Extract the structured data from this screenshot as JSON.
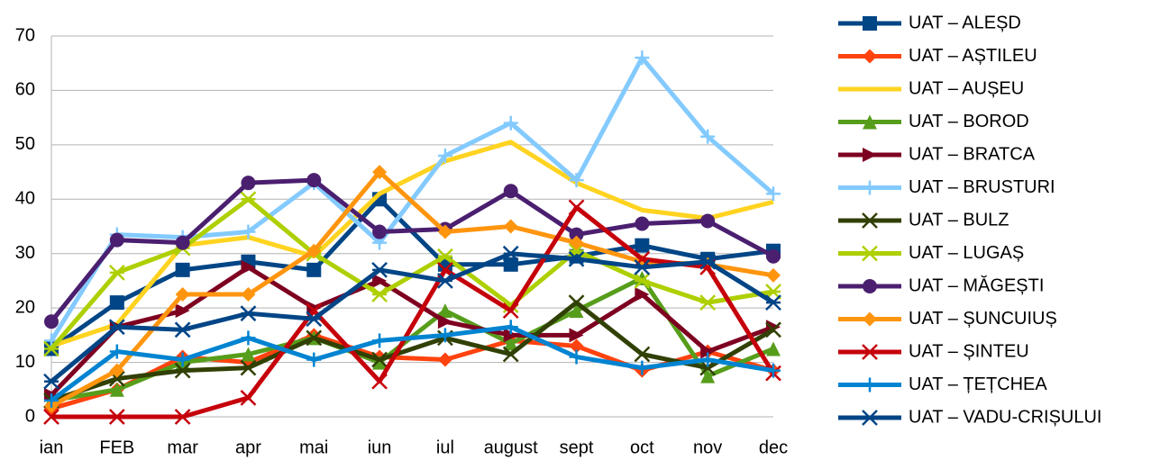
{
  "chart_data": {
    "type": "line",
    "categories": [
      "ian",
      "FEB",
      "mar",
      "apr",
      "mai",
      "iun",
      "iul",
      "august",
      "sept",
      "oct",
      "nov",
      "dec"
    ],
    "ylim": [
      0,
      70
    ],
    "yticks": [
      0,
      10,
      20,
      30,
      40,
      50,
      60,
      70
    ],
    "grid": true,
    "legend": "right",
    "series": [
      {
        "name": "UAT – ALEȘD",
        "color": "#004586",
        "marker": "square",
        "values": [
          12.5,
          21,
          27,
          28.5,
          27,
          40,
          28,
          28,
          29.5,
          31.5,
          29,
          30.5
        ]
      },
      {
        "name": "UAT – AȘTILEU",
        "color": "#ff420e",
        "marker": "diamond",
        "values": [
          1.5,
          5,
          11,
          10,
          15,
          11,
          10.5,
          14,
          13,
          8.5,
          12,
          8.5
        ]
      },
      {
        "name": "UAT – AUȘEU",
        "color": "#ffd320",
        "marker": "none",
        "values": [
          13,
          17,
          31.5,
          33,
          29.5,
          41,
          47,
          50.5,
          43,
          38,
          36.5,
          39.5
        ]
      },
      {
        "name": "UAT – BOROD",
        "color": "#579d1c",
        "marker": "triangle",
        "values": [
          3,
          5,
          10,
          11.5,
          14.5,
          10,
          19.5,
          13.5,
          19.5,
          25.5,
          7.5,
          12.5
        ]
      },
      {
        "name": "UAT – BRATCA",
        "color": "#7e0021",
        "marker": "triangle-right",
        "values": [
          4,
          16.5,
          19.5,
          27.5,
          20,
          25,
          17.5,
          15,
          15,
          22.5,
          12,
          16.5
        ]
      },
      {
        "name": "UAT – BRUSTURI",
        "color": "#83caff",
        "marker": "plus",
        "values": [
          14,
          33.5,
          33,
          34,
          43,
          32,
          48,
          54,
          43.5,
          66,
          51.5,
          41
        ]
      },
      {
        "name": "UAT – BULZ",
        "color": "#314004",
        "marker": "x",
        "values": [
          3,
          7,
          8.5,
          9,
          14.5,
          10.5,
          14.5,
          11.5,
          21,
          11.5,
          9,
          16
        ]
      },
      {
        "name": "UAT – LUGAȘ",
        "color": "#aecf00",
        "marker": "star",
        "values": [
          12.5,
          26.5,
          31,
          40,
          30,
          22.5,
          29.5,
          20.5,
          30.5,
          25,
          21,
          23
        ]
      },
      {
        "name": "UAT – MĂGEȘTI",
        "color": "#4b1f6f",
        "marker": "circle",
        "values": [
          17.5,
          32.5,
          32,
          43,
          43.5,
          34,
          34.5,
          41.5,
          33.5,
          35.5,
          36,
          29.5
        ]
      },
      {
        "name": "UAT – ȘUNCUIUȘ",
        "color": "#ff950e",
        "marker": "diamond",
        "values": [
          2,
          8.5,
          22.5,
          22.5,
          30.5,
          45,
          34,
          35,
          32,
          28.5,
          28,
          26
        ]
      },
      {
        "name": "UAT – ȘINTEU",
        "color": "#c5000b",
        "marker": "x",
        "values": [
          0,
          0,
          0,
          3.5,
          19.5,
          6.5,
          27,
          19.5,
          38.5,
          29,
          27.5,
          8
        ]
      },
      {
        "name": "UAT – ȚEȚCHEA",
        "color": "#0084d1",
        "marker": "plus",
        "values": [
          3,
          12,
          10.5,
          14.5,
          10.5,
          14,
          15,
          16.5,
          11,
          9,
          10.5,
          8.5
        ]
      },
      {
        "name": "UAT – VADU-CRIȘULUI",
        "color": "#004586",
        "marker": "star",
        "values": [
          6.5,
          16.5,
          16,
          19,
          18,
          27,
          25,
          30,
          29,
          27.5,
          28.5,
          21
        ]
      }
    ]
  }
}
